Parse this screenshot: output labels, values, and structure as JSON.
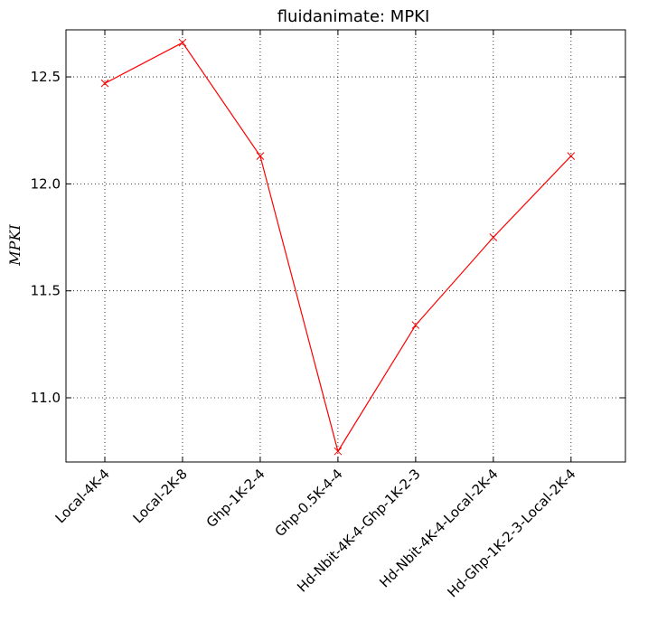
{
  "chart_data": {
    "type": "line",
    "title": "fluidanimate: MPKI",
    "xlabel": "",
    "ylabel": "MPKI",
    "categories": [
      "Local-4K-4",
      "Local-2K-8",
      "Ghp-1K-2-4",
      "Ghp-0.5K-4-4",
      "Hd-Nbit-4K-4-Ghp-1K-2-3",
      "Hd-Nbit-4K-4-Local-2K-4",
      "Hd-Ghp-1K-2-3-Local-2K-4"
    ],
    "series": [
      {
        "values": [
          12.47,
          12.66,
          12.13,
          10.75,
          11.34,
          11.75,
          12.13
        ],
        "color": "#ff0000",
        "marker": "x"
      }
    ],
    "ylim": [
      10.7,
      12.72
    ],
    "yticks": [
      11.0,
      11.5,
      12.0,
      12.5
    ],
    "ytick_labels": [
      "11.0",
      "11.5",
      "12.0",
      "12.5"
    ],
    "grid": true,
    "grid_style": "dotted"
  }
}
